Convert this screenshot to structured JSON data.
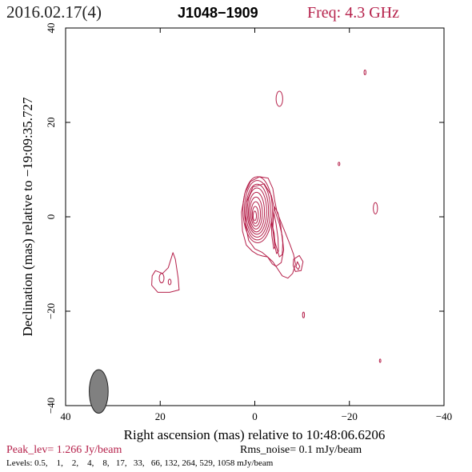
{
  "header": {
    "date": "2016.02.17(4)",
    "source": "J1048−1909",
    "freq": "Freq: 4.3 GHz"
  },
  "footer": {
    "peak": "Peak_lev=  1.266 Jy/beam",
    "rms": "Rms_noise=  0.1 mJy/beam",
    "levels": "Levels: 0.5,    1,    2,    4,    8,   17,   33,   66, 132, 264, 529, 1058 mJy/beam"
  },
  "colors": {
    "contour": "#b5204a",
    "beam": "#808080",
    "frame": "#000000"
  },
  "chart_data": {
    "type": "contour",
    "xlabel": "Right ascension (mas) relative to 10:48:06.6206",
    "ylabel": "Declination (mas) relative to −19:09:35.727",
    "xlim": [
      40,
      -40
    ],
    "ylim": [
      -40,
      40
    ],
    "xticks": [
      40,
      20,
      0,
      -20,
      -40
    ],
    "xtick_labels": [
      "40",
      "20",
      "0",
      "−20",
      "−40"
    ],
    "yticks": [
      -40,
      -20,
      0,
      20,
      40
    ],
    "ytick_labels": [
      "−40",
      "−20",
      "0",
      "20",
      "40"
    ],
    "peak_jy_per_beam": 1.266,
    "rms_mjy_per_beam": 0.1,
    "levels_mjy_per_beam": [
      0.5,
      1,
      2,
      4,
      8,
      17,
      33,
      66,
      132,
      264,
      529,
      1058
    ],
    "beam": {
      "x": 33,
      "y": -37,
      "major_mas": 4.6,
      "minor_mas": 2.0,
      "pa_deg": 0
    },
    "core_levels": [
      {
        "rx": 3.1,
        "ry": 7.0,
        "cx": -0.6,
        "cy": 1.5
      },
      {
        "rx": 2.75,
        "ry": 6.3,
        "cx": -0.55,
        "cy": 1.4
      },
      {
        "rx": 2.4,
        "ry": 5.6,
        "cx": -0.5,
        "cy": 1.3
      },
      {
        "rx": 2.05,
        "ry": 4.9,
        "cx": -0.45,
        "cy": 1.2
      },
      {
        "rx": 1.7,
        "ry": 4.2,
        "cx": -0.35,
        "cy": 1.0
      },
      {
        "rx": 1.35,
        "ry": 3.4,
        "cx": -0.25,
        "cy": 0.8
      },
      {
        "rx": 1.0,
        "ry": 2.6,
        "cx": -0.2,
        "cy": 0.6
      },
      {
        "rx": 0.65,
        "ry": 1.8,
        "cx": -0.1,
        "cy": 0.4
      },
      {
        "rx": 0.35,
        "ry": 1.0,
        "cx": 0.0,
        "cy": 0.2
      }
    ],
    "jet_contours": [
      [
        [
          -2.8,
          8.2
        ],
        [
          -1.0,
          8.5
        ],
        [
          0.9,
          7.5
        ],
        [
          2.1,
          5.0
        ],
        [
          2.8,
          1.0
        ],
        [
          2.6,
          -3.0
        ],
        [
          1.8,
          -6.0
        ],
        [
          0.5,
          -7.3
        ],
        [
          -0.6,
          -8.0
        ],
        [
          -1.6,
          -8.3
        ],
        [
          -2.7,
          -8.5
        ],
        [
          -3.8,
          -9.5
        ],
        [
          -4.8,
          -11.0
        ],
        [
          -5.8,
          -12.5
        ],
        [
          -7.0,
          -13.0
        ],
        [
          -8.0,
          -12.0
        ],
        [
          -8.6,
          -10.0
        ],
        [
          -8.2,
          -8.0
        ],
        [
          -7.5,
          -6.0
        ],
        [
          -6.5,
          -3.5
        ],
        [
          -5.5,
          -1.0
        ],
        [
          -4.7,
          1.0
        ],
        [
          -4.2,
          3.5
        ],
        [
          -3.8,
          6.0
        ],
        [
          -2.8,
          8.2
        ]
      ],
      [
        [
          -2.0,
          7.0
        ],
        [
          0.4,
          6.3
        ],
        [
          1.8,
          3.0
        ],
        [
          2.0,
          -1.5
        ],
        [
          1.3,
          -5.0
        ],
        [
          0.0,
          -6.8
        ],
        [
          -1.5,
          -7.5
        ],
        [
          -2.7,
          -8.5
        ],
        [
          -3.7,
          -10.0
        ],
        [
          -4.5,
          -10.5
        ],
        [
          -5.6,
          -9.7
        ],
        [
          -6.1,
          -7.0
        ],
        [
          -5.8,
          -4.0
        ],
        [
          -5.2,
          -1.5
        ],
        [
          -4.2,
          1.5
        ],
        [
          -3.5,
          4.5
        ],
        [
          -2.0,
          7.0
        ]
      ],
      [
        [
          -4.1,
          2.2
        ],
        [
          -3.7,
          -2.0
        ],
        [
          -4.3,
          -5.5
        ],
        [
          -5.2,
          -8.5
        ],
        [
          -5.8,
          -8.0
        ],
        [
          -5.9,
          -5.5
        ],
        [
          -5.5,
          -2.0
        ],
        [
          -4.9,
          0.8
        ],
        [
          -4.1,
          2.2
        ]
      ],
      [
        [
          -4.0,
          1.0
        ],
        [
          -3.8,
          -2.5
        ],
        [
          -4.2,
          -6.0
        ],
        [
          -4.6,
          -7.8
        ],
        [
          -5.0,
          -7.3
        ],
        [
          -4.9,
          -4.5
        ],
        [
          -4.5,
          -1.5
        ],
        [
          -4.0,
          1.0
        ]
      ],
      [
        [
          -3.5,
          -1.0
        ],
        [
          -3.6,
          -4.0
        ],
        [
          -4.0,
          -6.8
        ],
        [
          -4.3,
          -6.2
        ],
        [
          -4.1,
          -3.5
        ],
        [
          -3.5,
          -1.0
        ]
      ]
    ],
    "features": [
      {
        "type": "poly",
        "pts": [
          [
            -8.2,
            -9.0
          ],
          [
            -9.4,
            -8.2
          ],
          [
            -10.2,
            -9.5
          ],
          [
            -9.8,
            -11.4
          ],
          [
            -8.6,
            -11.6
          ],
          [
            -8.1,
            -10.3
          ],
          [
            -8.2,
            -9.0
          ]
        ]
      },
      {
        "type": "poly",
        "pts": [
          [
            -9.0,
            -9.5
          ],
          [
            -9.5,
            -10.5
          ],
          [
            -9.2,
            -11.2
          ],
          [
            -8.7,
            -10.6
          ],
          [
            -9.0,
            -9.5
          ]
        ]
      },
      {
        "type": "poly",
        "pts": [
          [
            21.0,
            -11.4
          ],
          [
            19.5,
            -12.0
          ],
          [
            18.3,
            -10.8
          ],
          [
            17.3,
            -7.6
          ],
          [
            16.8,
            -9.0
          ],
          [
            16.2,
            -13.0
          ],
          [
            16.0,
            -15.5
          ],
          [
            18.0,
            -16.0
          ],
          [
            20.5,
            -16.0
          ],
          [
            21.8,
            -14.5
          ],
          [
            21.7,
            -12.5
          ],
          [
            21.0,
            -11.4
          ]
        ]
      },
      {
        "type": "ellipse",
        "cx": 19.7,
        "cy": -13.0,
        "rx": 0.5,
        "ry": 1.0
      },
      {
        "type": "ellipse",
        "cx": 18.0,
        "cy": -13.8,
        "rx": 0.3,
        "ry": 0.6
      },
      {
        "type": "ellipse",
        "cx": -5.2,
        "cy": 25.0,
        "rx": 0.7,
        "ry": 1.6
      },
      {
        "type": "ellipse",
        "cx": -23.3,
        "cy": 30.6,
        "rx": 0.2,
        "ry": 0.5
      },
      {
        "type": "ellipse",
        "cx": -17.8,
        "cy": 11.2,
        "rx": 0.18,
        "ry": 0.35
      },
      {
        "type": "ellipse",
        "cx": -25.5,
        "cy": 1.8,
        "rx": 0.45,
        "ry": 1.2
      },
      {
        "type": "ellipse",
        "cx": -10.3,
        "cy": -20.8,
        "rx": 0.2,
        "ry": 0.6
      },
      {
        "type": "ellipse",
        "cx": -26.5,
        "cy": -30.5,
        "rx": 0.15,
        "ry": 0.35
      }
    ]
  }
}
